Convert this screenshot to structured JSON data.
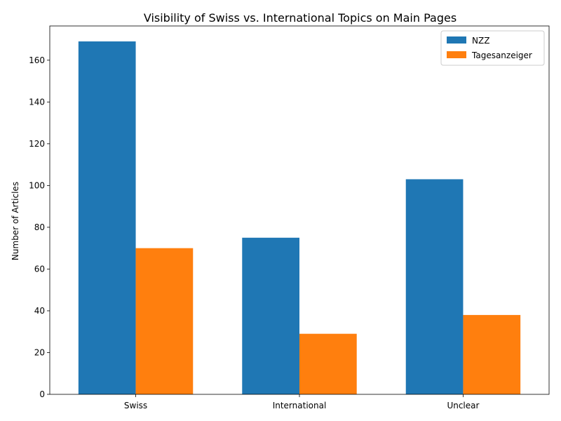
{
  "chart_data": {
    "type": "bar",
    "title": "Visibility of Swiss vs. International Topics on Main Pages",
    "xlabel": "",
    "ylabel": "Number of Articles",
    "categories": [
      "Swiss",
      "International",
      "Unclear"
    ],
    "series": [
      {
        "name": "NZZ",
        "values": [
          169,
          75,
          103
        ],
        "color": "#1f77b4"
      },
      {
        "name": "Tagesanzeiger",
        "values": [
          70,
          29,
          38
        ],
        "color": "#ff7f0e"
      }
    ],
    "ylim": [
      0,
      176.4
    ],
    "yticks": [
      0,
      20,
      40,
      60,
      80,
      100,
      120,
      140,
      160
    ],
    "grid": false,
    "legend_position": "top-right"
  }
}
